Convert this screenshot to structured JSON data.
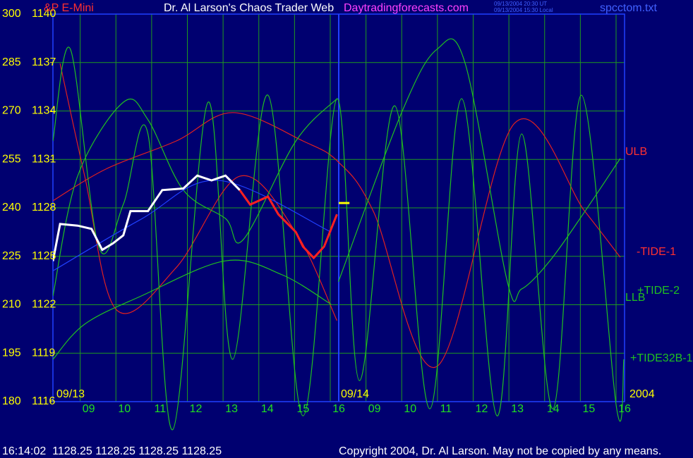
{
  "chart_data": {
    "type": "line",
    "title": "Dr. Al Larson's Chaos Trader Web",
    "subtitle": "&P E-Mini",
    "website": "Daytradingforecasts.com",
    "timestamp_ut": "09/13/2004 20:30 UT",
    "timestamp_local": "09/13/2004 15:30 Local",
    "file_name": "spcctom.txt",
    "date_labels": [
      "09/13",
      "09/14",
      "2004"
    ],
    "curve_labels": [
      "ULB",
      "-TIDE-1",
      "+TIDE-2",
      "LLB",
      "+TIDE32B-1"
    ],
    "quote_line": "16:14:02  1128.25 1128.25 1128.25 1128.25",
    "copyright": "Copyright 2004, Dr. Al Larson. May not be copied by any means.",
    "xlim": [
      8,
      24
    ],
    "xticks": [
      {
        "value": 9,
        "label": "09"
      },
      10,
      11,
      12,
      13,
      14,
      15,
      16,
      {
        "value": 17,
        "label": "09"
      },
      {
        "value": 18,
        "label": "10"
      },
      {
        "value": 19,
        "label": "11"
      },
      {
        "value": 20,
        "label": "12"
      },
      {
        "value": 21,
        "label": "13"
      },
      {
        "value": 22,
        "label": "14"
      },
      {
        "value": 23,
        "label": "15"
      },
      {
        "value": 24,
        "label": "16"
      }
    ],
    "divider_x": 16,
    "ylim": [
      180,
      300
    ],
    "yticks": [
      180,
      195,
      210,
      225,
      240,
      255,
      270,
      285,
      300
    ],
    "y2lim": [
      1116,
      1140
    ],
    "y2ticks": [
      1116,
      1119,
      1122,
      1125,
      1128,
      1131,
      1134,
      1137,
      1140
    ],
    "grid": true,
    "series": [
      {
        "name": "ULB",
        "color": "#e02020",
        "x": [
          8.0,
          9.48,
          11.45,
          13.03,
          15.0,
          15.99,
          16.97,
          18.75,
          20.92,
          22.89,
          23.88
        ],
        "values": [
          242.2,
          252.0,
          260.7,
          269.5,
          260.7,
          254.2,
          238.9,
          190.9,
          266.2,
          238.9,
          224.7
        ]
      },
      {
        "name": "-TIDE-1",
        "color": "#e02020",
        "x": [
          8.2,
          8.89,
          9.78,
          11.45,
          13.23,
          14.8,
          15.95
        ],
        "values": [
          284.7,
          249.8,
          208.4,
          221.5,
          249.8,
          232.4,
          205.1
        ]
      },
      {
        "name": "LLB",
        "color": "#20c020",
        "x": [
          8.0,
          8.89,
          10.47,
          12.83,
          14.41,
          15.79
        ],
        "values": [
          193.1,
          204.0,
          212.7,
          223.6,
          219.3,
          210.1
        ]
      },
      {
        "name": "+TIDE-2",
        "color": "#20c020",
        "x": [
          8.0,
          8.69,
          9.97,
          10.66,
          11.65,
          12.83,
          13.33,
          14.8,
          15.95
        ],
        "values": [
          212.7,
          249.8,
          272.7,
          267.3,
          245.5,
          236.7,
          230.2,
          260.7,
          273.8
        ]
      },
      {
        "name": "+TIDE-2",
        "color": "#20c020",
        "x": [
          15.99,
          17.76,
          18.75,
          19.54,
          20.72,
          21.12,
          21.91,
          22.89,
          23.88
        ],
        "values": [
          217.1,
          269.5,
          289.1,
          284.7,
          217.1,
          214.9,
          223.6,
          238.9,
          255.3
        ]
      },
      {
        "name": "+TIDE32B-1",
        "color": "#20c020",
        "x": [
          8.0,
          8.49,
          9.28,
          9.97,
          10.66,
          11.35,
          12.34,
          13.03,
          14.02,
          15.0,
          15.95,
          16.58,
          17.57,
          18.55,
          19.44,
          20.43,
          21.12,
          22.0,
          22.79,
          23.78,
          23.98
        ],
        "values": [
          260.7,
          289.1,
          228.0,
          241.1,
          262.9,
          171.3,
          272.7,
          193.1,
          274.9,
          175.6,
          273.8,
          186.5,
          271.6,
          177.8,
          273.8,
          175.6,
          262.9,
          177.8,
          274.9,
          177.8,
          193.1
        ]
      },
      {
        "name": "trend",
        "color": "#2040ff",
        "axis": "y2",
        "x": [
          8.0,
          10.47,
          12.64,
          15.79
        ],
        "values": [
          1124.1,
          1127.3,
          1129.7,
          1126.5
        ]
      },
      {
        "name": "price",
        "color": "#ffffff",
        "axis": "y2",
        "x": [
          8.0,
          8.2,
          8.69,
          9.08,
          9.38,
          9.68,
          9.97,
          10.17,
          10.66,
          11.06,
          11.65,
          12.04,
          12.44,
          12.83,
          13.23
        ],
        "values": [
          1124.7,
          1127.0,
          1126.9,
          1126.7,
          1125.4,
          1125.8,
          1126.3,
          1127.8,
          1127.8,
          1129.1,
          1129.2,
          1130.0,
          1129.7,
          1130.0,
          1129.1
        ]
      },
      {
        "name": "price",
        "color": "#ff2020",
        "axis": "y2",
        "x": [
          13.23,
          13.52,
          14.02,
          14.31,
          14.8,
          15.0,
          15.3,
          15.59,
          15.95
        ],
        "values": [
          1129.1,
          1128.2,
          1128.7,
          1127.6,
          1126.5,
          1125.6,
          1124.9,
          1125.6,
          1127.6
        ]
      },
      {
        "name": "last",
        "color": "#ffff00",
        "axis": "y2",
        "x": [
          16.0,
          16.3
        ],
        "values": [
          1128.3,
          1128.3
        ]
      }
    ]
  }
}
